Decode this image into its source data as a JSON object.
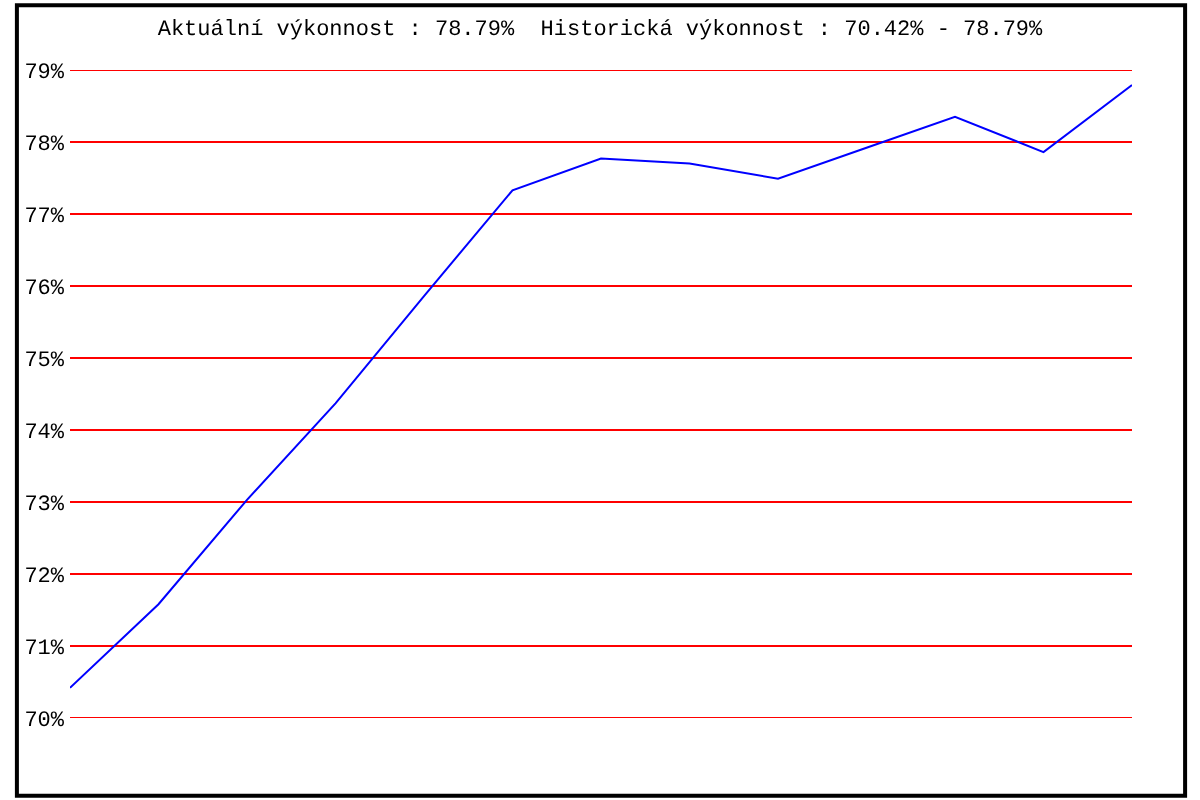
{
  "chart_data": {
    "type": "line",
    "title": "Aktuální výkonnost : 78.79%  Historická výkonnost : 70.42% - 78.79%",
    "categories": [
      null,
      null,
      null,
      null,
      null,
      null,
      null,
      null,
      null,
      null,
      null,
      null,
      null
    ],
    "series": [
      {
        "color": "#0000ff",
        "values": [
          70.42,
          71.58,
          73.03,
          74.37,
          75.86,
          77.33,
          77.77,
          77.7,
          77.49,
          77.92,
          78.35,
          77.86,
          78.79
        ]
      }
    ],
    "ylim": [
      70,
      79
    ],
    "yticks": [
      {
        "value": 70,
        "label": "70%"
      },
      {
        "value": 71,
        "label": "71%"
      },
      {
        "value": 72,
        "label": "72%"
      },
      {
        "value": 73,
        "label": "73%"
      },
      {
        "value": 74,
        "label": "74%"
      },
      {
        "value": 75,
        "label": "75%"
      },
      {
        "value": 76,
        "label": "76%"
      },
      {
        "value": 77,
        "label": "77%"
      },
      {
        "value": 78,
        "label": "78%"
      },
      {
        "value": 79,
        "label": "79%"
      }
    ],
    "grid": "y",
    "tick_labels": "y"
  }
}
